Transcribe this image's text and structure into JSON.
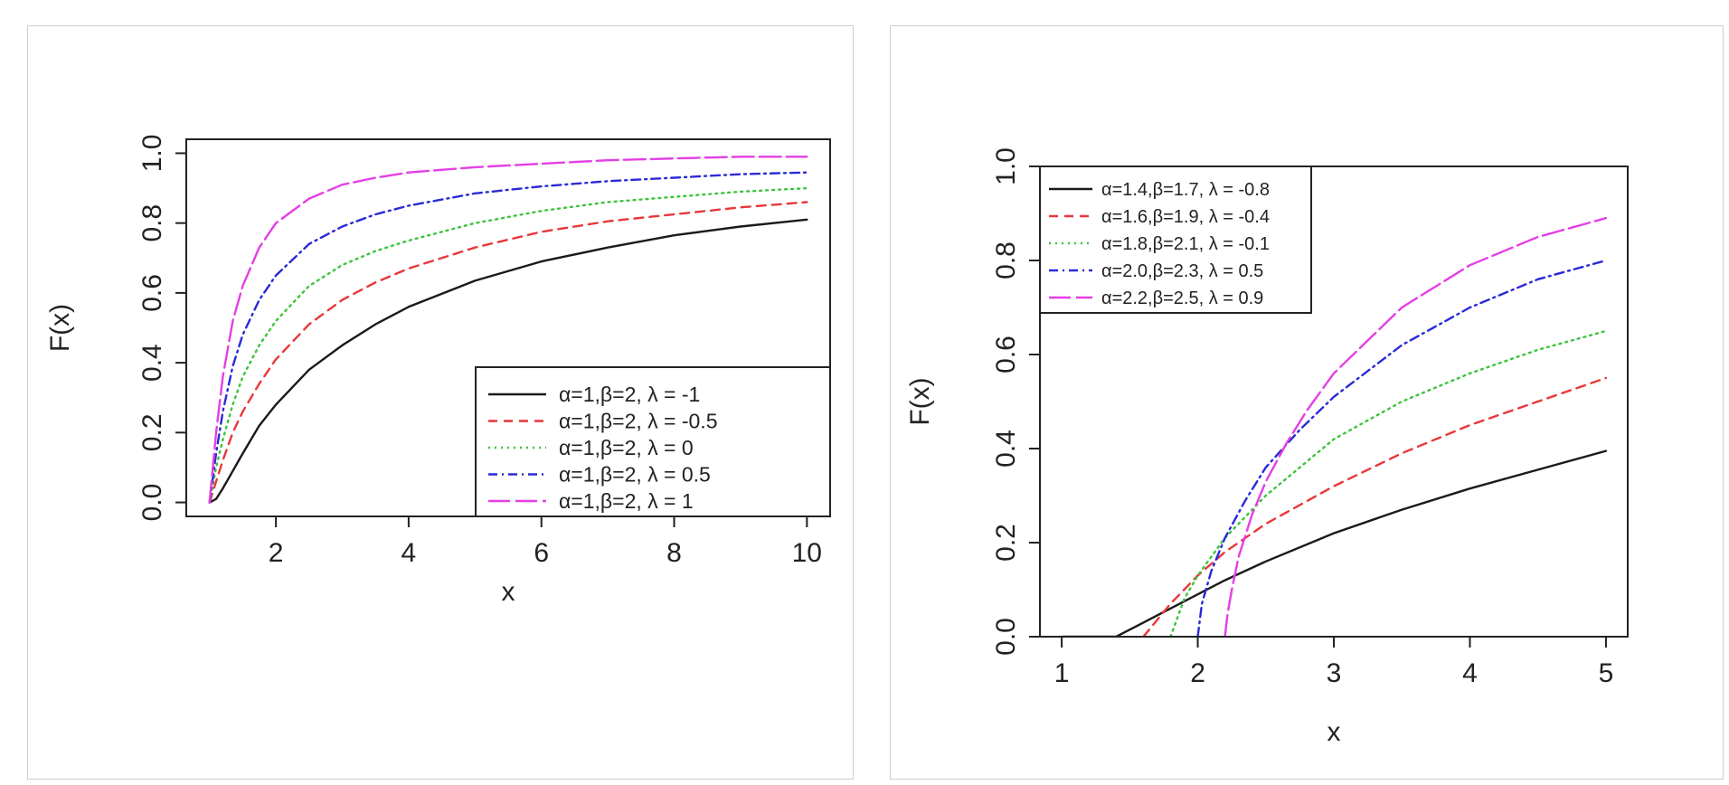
{
  "colors": {
    "black": "#1a1a1a",
    "red": "#e8373a",
    "green": "#3cc43c",
    "blue": "#2a2ad8",
    "magenta": "#e43fe4"
  },
  "chart_data": [
    {
      "type": "line",
      "title": "",
      "xlabel": "x",
      "ylabel": "F(x)",
      "xlim": [
        0.65,
        10.35
      ],
      "ylim": [
        -0.04,
        1.04
      ],
      "x_ticks": [
        2,
        4,
        6,
        8,
        10
      ],
      "y_ticks": [
        0.0,
        0.2,
        0.4,
        0.6,
        0.8,
        1.0
      ],
      "x_tick_labels": [
        "2",
        "4",
        "6",
        "8",
        "10"
      ],
      "y_tick_labels": [
        "0.0",
        "0.2",
        "0.4",
        "0.6",
        "0.8",
        "1.0"
      ],
      "legend_position": "bottom-right",
      "grid": false,
      "series": [
        {
          "name": "α=1,β=2, λ = -1",
          "color": "#1a1a1a",
          "dash": "solid",
          "x": [
            1.0,
            1.1,
            1.2,
            1.35,
            1.5,
            1.75,
            2.0,
            2.5,
            3.0,
            3.5,
            4.0,
            5.0,
            6.0,
            7.0,
            8.0,
            9.0,
            10.0
          ],
          "y": [
            0.0,
            0.01,
            0.04,
            0.09,
            0.14,
            0.22,
            0.28,
            0.38,
            0.45,
            0.51,
            0.56,
            0.635,
            0.69,
            0.73,
            0.765,
            0.79,
            0.81
          ]
        },
        {
          "name": "α=1,β=2, λ = -0.5",
          "color": "#e8373a",
          "dash": "10 7",
          "x": [
            1.0,
            1.1,
            1.2,
            1.35,
            1.5,
            1.75,
            2.0,
            2.5,
            3.0,
            3.5,
            4.0,
            5.0,
            6.0,
            7.0,
            8.0,
            9.0,
            10.0
          ],
          "y": [
            0.0,
            0.06,
            0.12,
            0.2,
            0.26,
            0.34,
            0.41,
            0.51,
            0.58,
            0.63,
            0.67,
            0.73,
            0.775,
            0.805,
            0.825,
            0.845,
            0.86
          ]
        },
        {
          "name": "α=1,β=2, λ = 0",
          "color": "#3cc43c",
          "dash": "2 5",
          "x": [
            1.0,
            1.1,
            1.2,
            1.35,
            1.5,
            1.75,
            2.0,
            2.5,
            3.0,
            3.5,
            4.0,
            5.0,
            6.0,
            7.0,
            8.0,
            9.0,
            10.0
          ],
          "y": [
            0.0,
            0.1,
            0.18,
            0.28,
            0.36,
            0.45,
            0.52,
            0.62,
            0.68,
            0.72,
            0.75,
            0.8,
            0.835,
            0.86,
            0.875,
            0.89,
            0.9
          ]
        },
        {
          "name": "α=1,β=2, λ = 0.5",
          "color": "#2a2ad8",
          "dash": "10 5 2 5",
          "x": [
            1.0,
            1.1,
            1.2,
            1.35,
            1.5,
            1.75,
            2.0,
            2.5,
            3.0,
            3.5,
            4.0,
            5.0,
            6.0,
            7.0,
            8.0,
            9.0,
            10.0
          ],
          "y": [
            0.0,
            0.14,
            0.26,
            0.39,
            0.48,
            0.58,
            0.65,
            0.74,
            0.79,
            0.825,
            0.85,
            0.885,
            0.905,
            0.92,
            0.93,
            0.94,
            0.945
          ]
        },
        {
          "name": "α=1,β=2, λ = 1",
          "color": "#e43fe4",
          "dash": "24 6",
          "x": [
            1.0,
            1.1,
            1.2,
            1.35,
            1.5,
            1.75,
            2.0,
            2.5,
            3.0,
            3.5,
            4.0,
            5.0,
            6.0,
            7.0,
            8.0,
            9.0,
            10.0
          ],
          "y": [
            0.0,
            0.2,
            0.36,
            0.52,
            0.62,
            0.73,
            0.8,
            0.87,
            0.91,
            0.93,
            0.945,
            0.96,
            0.97,
            0.98,
            0.985,
            0.99,
            0.99
          ]
        }
      ]
    },
    {
      "type": "line",
      "title": "",
      "xlabel": "x",
      "ylabel": "F(x)",
      "xlim": [
        0.84,
        5.16
      ],
      "ylim": [
        0.0,
        1.0
      ],
      "x_ticks": [
        1,
        2,
        3,
        4,
        5
      ],
      "y_ticks": [
        0.0,
        0.2,
        0.4,
        0.6,
        0.8,
        1.0
      ],
      "x_tick_labels": [
        "1",
        "2",
        "3",
        "4",
        "5"
      ],
      "y_tick_labels": [
        "0.0",
        "0.2",
        "0.4",
        "0.6",
        "0.8",
        "1.0"
      ],
      "legend_position": "top-left",
      "grid": false,
      "series": [
        {
          "name": "α=1.4,β=1.7, λ = -0.8",
          "color": "#1a1a1a",
          "dash": "solid",
          "x": [
            1.0,
            1.4,
            1.6,
            1.8,
            2.0,
            2.2,
            2.5,
            3.0,
            3.5,
            4.0,
            4.5,
            5.0
          ],
          "y": [
            0.0,
            0.0,
            0.03,
            0.06,
            0.09,
            0.12,
            0.16,
            0.22,
            0.27,
            0.315,
            0.355,
            0.395
          ]
        },
        {
          "name": "α=1.6,β=1.9, λ = -0.4",
          "color": "#e8373a",
          "dash": "10 7",
          "x": [
            1.6,
            1.8,
            2.0,
            2.2,
            2.5,
            3.0,
            3.5,
            4.0,
            4.5,
            5.0
          ],
          "y": [
            0.0,
            0.07,
            0.13,
            0.18,
            0.24,
            0.32,
            0.39,
            0.45,
            0.5,
            0.55
          ]
        },
        {
          "name": "α=1.8,β=2.1, λ = -0.1",
          "color": "#3cc43c",
          "dash": "2 5",
          "x": [
            1.8,
            1.85,
            1.9,
            2.0,
            2.2,
            2.5,
            3.0,
            3.5,
            4.0,
            4.5,
            5.0
          ],
          "y": [
            0.0,
            0.04,
            0.08,
            0.13,
            0.21,
            0.3,
            0.42,
            0.5,
            0.56,
            0.61,
            0.65
          ]
        },
        {
          "name": "α=2.0,β=2.3, λ = 0.5",
          "color": "#2a2ad8",
          "dash": "10 5 2 5",
          "x": [
            2.0,
            2.03,
            2.1,
            2.2,
            2.35,
            2.5,
            2.75,
            3.0,
            3.5,
            4.0,
            4.5,
            5.0
          ],
          "y": [
            0.0,
            0.07,
            0.14,
            0.21,
            0.29,
            0.36,
            0.44,
            0.51,
            0.62,
            0.7,
            0.76,
            0.8
          ]
        },
        {
          "name": "α=2.2,β=2.5, λ = 0.9",
          "color": "#e43fe4",
          "dash": "24 6",
          "x": [
            2.2,
            2.22,
            2.25,
            2.3,
            2.4,
            2.5,
            2.65,
            2.8,
            3.0,
            3.5,
            4.0,
            4.5,
            5.0
          ],
          "y": [
            0.0,
            0.05,
            0.1,
            0.17,
            0.26,
            0.33,
            0.41,
            0.48,
            0.56,
            0.7,
            0.79,
            0.85,
            0.89
          ]
        }
      ]
    }
  ]
}
